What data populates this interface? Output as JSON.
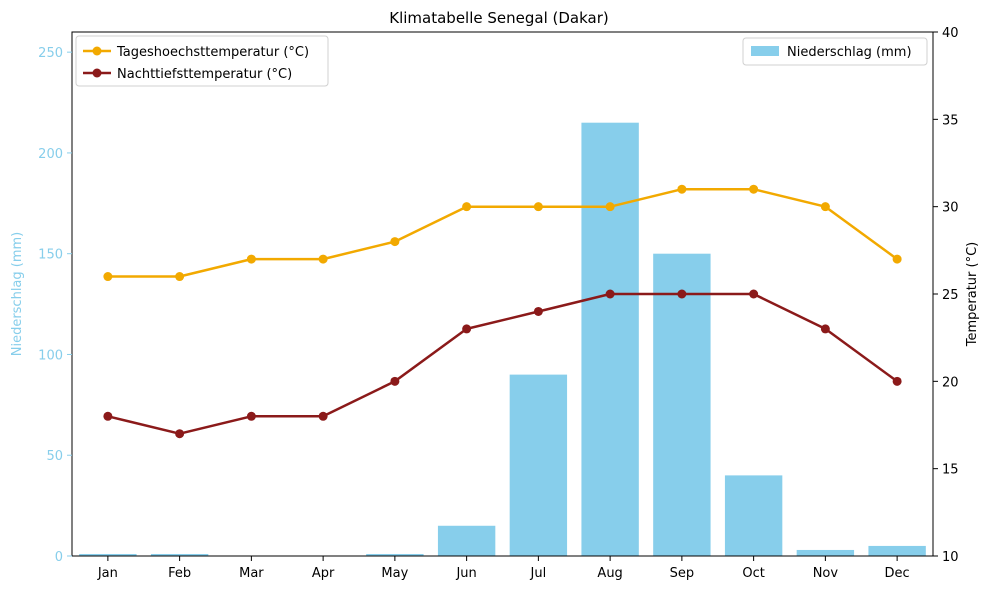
{
  "chart_data": {
    "type": "bar+line",
    "title": "Klimatabelle Senegal (Dakar)",
    "categories": [
      "Jan",
      "Feb",
      "Mar",
      "Apr",
      "May",
      "Jun",
      "Jul",
      "Aug",
      "Sep",
      "Oct",
      "Nov",
      "Dec"
    ],
    "left_axis": {
      "label": "Niederschlag (mm)",
      "range": [
        0,
        260
      ],
      "ticks": [
        0,
        50,
        100,
        150,
        200,
        250
      ],
      "color": "#87ceeb"
    },
    "right_axis": {
      "label": "Temperatur (°C)",
      "range": [
        10,
        40
      ],
      "ticks": [
        10,
        15,
        20,
        25,
        30,
        35,
        40
      ],
      "color": "#000000"
    },
    "bar_series": {
      "name": "Niederschlag (mm)",
      "color": "#87ceeb",
      "values": [
        1,
        1,
        0,
        0,
        1,
        15,
        90,
        215,
        150,
        40,
        3,
        5
      ]
    },
    "line_series": [
      {
        "name": "Tageshoechsttemperatur (°C)",
        "color": "#f2a900",
        "values": [
          26,
          26,
          27,
          27,
          28,
          30,
          30,
          30,
          31,
          31,
          30,
          27
        ]
      },
      {
        "name": "Nachttiefsttemperatur (°C)",
        "color": "#8b1a1a",
        "values": [
          18,
          17,
          18,
          18,
          20,
          23,
          24,
          25,
          25,
          25,
          23,
          20
        ]
      }
    ],
    "legends": {
      "lines": "top-left",
      "bars": "top-right"
    },
    "grid": false
  }
}
